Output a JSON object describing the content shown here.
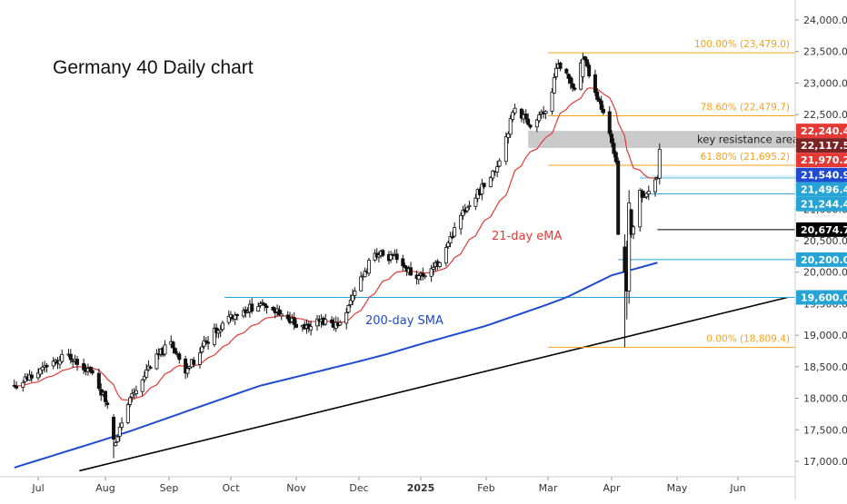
{
  "chart_data": {
    "type": "candlestick",
    "title": "Germany 40 Daily chart",
    "ylim": [
      16850,
      24250
    ],
    "y_ticks": [
      17000,
      17500,
      18000,
      18500,
      19000,
      19500,
      20000,
      20500,
      21000,
      21500,
      22000,
      22500,
      23000,
      23500,
      24000
    ],
    "y_tick_labels": [
      "17,000.0",
      "17,500.0",
      "18,000.0",
      "18,500.0",
      "19,000.0",
      "19,500.0",
      "20,000.0",
      "20,500.0",
      "21,000.0",
      "21,500.0",
      "22,000.0",
      "22,500.0",
      "23,000.0",
      "23,500.0",
      "24,000.0"
    ],
    "x_labels": [
      "Jul",
      "Aug",
      "Sep",
      "Oct",
      "Nov",
      "Dec",
      "2025",
      "Feb",
      "Mar",
      "Apr",
      "May",
      "Jun"
    ],
    "price_anchors": [
      [
        "2024-06-20",
        18200
      ],
      [
        "2024-07-01",
        18400
      ],
      [
        "2024-07-15",
        18700
      ],
      [
        "2024-07-26",
        18400
      ],
      [
        "2024-08-02",
        17900
      ],
      [
        "2024-08-05",
        17250
      ],
      [
        "2024-08-12",
        17900
      ],
      [
        "2024-08-21",
        18450
      ],
      [
        "2024-09-02",
        18900
      ],
      [
        "2024-09-09",
        18400
      ],
      [
        "2024-09-19",
        18900
      ],
      [
        "2024-09-30",
        19300
      ],
      [
        "2024-10-15",
        19500
      ],
      [
        "2024-10-21",
        19400
      ],
      [
        "2024-11-05",
        19100
      ],
      [
        "2024-11-15",
        19250
      ],
      [
        "2024-11-21",
        19150
      ],
      [
        "2024-11-29",
        19700
      ],
      [
        "2024-12-09",
        20300
      ],
      [
        "2024-12-20",
        20200
      ],
      [
        "2024-12-30",
        19900
      ],
      [
        "2025-01-10",
        20150
      ],
      [
        "2025-01-20",
        20900
      ],
      [
        "2025-02-05",
        21600
      ],
      [
        "2025-02-14",
        22600
      ],
      [
        "2025-02-21",
        22300
      ],
      [
        "2025-02-28",
        22550
      ],
      [
        "2025-03-06",
        23300
      ],
      [
        "2025-03-14",
        22900
      ],
      [
        "2025-03-18",
        23400
      ],
      [
        "2025-03-24",
        22850
      ],
      [
        "2025-03-31",
        22200
      ],
      [
        "2025-04-03",
        21750
      ],
      [
        "2025-04-04",
        20600
      ],
      [
        "2025-04-07",
        20000
      ],
      [
        "2025-04-08",
        19600
      ],
      [
        "2025-04-09",
        21000
      ],
      [
        "2025-04-10",
        20600
      ],
      [
        "2025-04-14",
        21300
      ],
      [
        "2025-04-16",
        21200
      ],
      [
        "2025-04-17",
        21250
      ],
      [
        "2025-04-22",
        21500
      ],
      [
        "2025-04-23",
        21950
      ]
    ],
    "series": [
      {
        "name": "21-day eMA",
        "color": "#e53935"
      },
      {
        "name": "200-day SMA",
        "color": "#1e4bd2"
      }
    ],
    "sma200_anchors": [
      [
        "2024-06-20",
        16900
      ],
      [
        "2024-08-15",
        17500
      ],
      [
        "2024-10-15",
        18200
      ],
      [
        "2024-12-15",
        18700
      ],
      [
        "2025-02-01",
        19150
      ],
      [
        "2025-03-10",
        19600
      ],
      [
        "2025-04-01",
        19950
      ],
      [
        "2025-04-23",
        20160
      ]
    ],
    "fib_levels": [
      {
        "label": "100.00% (23,479.0)",
        "value": 23479.0,
        "color": "#f7a21b"
      },
      {
        "label": "78.60% (22,479.7)",
        "value": 22479.7,
        "color": "#f7a21b"
      },
      {
        "label": "61.80% (21,695.2)",
        "value": 21695.2,
        "color": "#f7a21b"
      },
      {
        "label": "0.00% (18,809.4)",
        "value": 18809.4,
        "color": "#f7a21b"
      }
    ],
    "price_tags": [
      {
        "label": "22,240.4",
        "value": 22240.4,
        "bg": "#e53935"
      },
      {
        "label": "22,117.5",
        "value": 22117.5,
        "bg": "#7d2323"
      },
      {
        "label": "21,970.2",
        "value": 21970.2,
        "bg": "#e53935"
      },
      {
        "label": "21,540.9",
        "value": 21540.9,
        "bg": "#1e4bd2"
      },
      {
        "label": "21,496.4",
        "value": 21496.4,
        "bg": "#26a4d6"
      },
      {
        "label": "21,244.4",
        "value": 21244.4,
        "bg": "#26a4d6"
      },
      {
        "label": "20,674.7",
        "value": 20674.7,
        "bg": "#000000"
      },
      {
        "label": "20,200.0",
        "value": 20200.0,
        "bg": "#26a4d6"
      },
      {
        "label": "19,600.0",
        "value": 19600.0,
        "bg": "#26a4d6"
      }
    ],
    "horizontal_lines": [
      {
        "value": 21496.4,
        "color": "#26a4d6"
      },
      {
        "value": 21244.4,
        "color": "#26a4d6"
      },
      {
        "value": 20674.7,
        "color": "#000000"
      },
      {
        "value": 20200.0,
        "color": "#26a4d6"
      },
      {
        "value": 19600.0,
        "color": "#26a4d6"
      }
    ],
    "zone": {
      "label": "key resistance area",
      "from": 21970.2,
      "to": 22240.4,
      "color": "#9e9e9e"
    },
    "trendline": {
      "start": [
        "2024-07-20",
        16850
      ],
      "end": [
        "2025-06-25",
        19600
      ],
      "color": "#000000"
    },
    "annotations": [
      {
        "text": "21-day eMA",
        "color": "#e53935"
      },
      {
        "text": "200-day SMA",
        "color": "#1e4bd2"
      }
    ],
    "grid": false,
    "legend": "none"
  }
}
